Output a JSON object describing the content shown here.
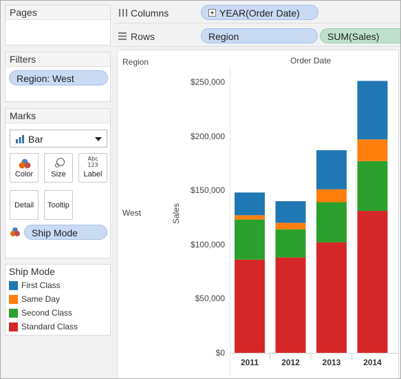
{
  "pages": {
    "title": "Pages"
  },
  "filters": {
    "title": "Filters",
    "pill": "Region: West"
  },
  "marks": {
    "title": "Marks",
    "mark_type": "Bar",
    "buttons": {
      "color": "Color",
      "size": "Size",
      "label": "Label",
      "detail": "Detail",
      "tooltip": "Tooltip"
    },
    "label_icon_text_top": "Abc",
    "label_icon_text_bottom": "123",
    "color_pill": "Ship Mode"
  },
  "legend": {
    "title": "Ship Mode",
    "items": [
      {
        "label": "First Class",
        "color": "#1f77b4"
      },
      {
        "label": "Same Day",
        "color": "#ff7f0e"
      },
      {
        "label": "Second Class",
        "color": "#2ca02c"
      },
      {
        "label": "Standard Class",
        "color": "#d62728"
      }
    ]
  },
  "columns_shelf": {
    "label": "Columns",
    "pill": "YEAR(Order Date)"
  },
  "rows_shelf": {
    "label": "Rows",
    "pill1": "Region",
    "pill2": "SUM(Sales)"
  },
  "view": {
    "row_header_title": "Region",
    "column_header_title": "Order Date",
    "row_value": "West",
    "y_axis_label": "Sales"
  },
  "chart_data": {
    "type": "bar",
    "stacked": true,
    "categories": [
      "2011",
      "2012",
      "2013",
      "2014"
    ],
    "series": [
      {
        "name": "Standard Class",
        "values": [
          86000,
          88000,
          102000,
          131000
        ]
      },
      {
        "name": "Second Class",
        "values": [
          37000,
          26000,
          37000,
          46000
        ]
      },
      {
        "name": "Same Day",
        "values": [
          4000,
          6000,
          12000,
          20000
        ]
      },
      {
        "name": "First Class",
        "values": [
          21000,
          20000,
          36000,
          54000
        ]
      }
    ],
    "ylabel": "Sales",
    "ylim": [
      0,
      250000
    ],
    "yticks": [
      "$0",
      "$50,000",
      "$100,000",
      "$150,000",
      "$200,000",
      "$250,000"
    ],
    "grid": false
  }
}
